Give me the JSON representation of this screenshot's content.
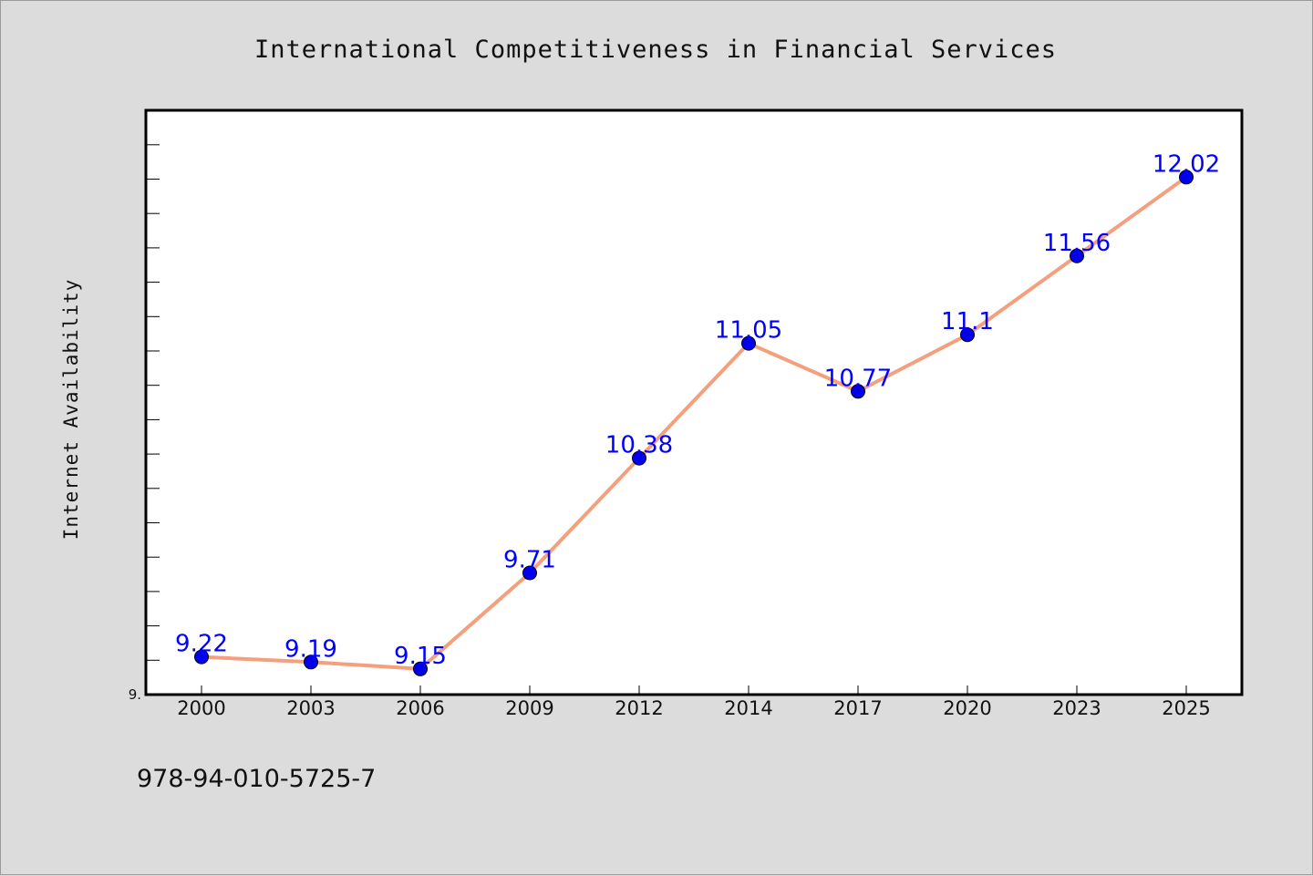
{
  "chart_data": {
    "type": "line",
    "title": "International Competitiveness in Financial Services",
    "xlabel": "",
    "ylabel": "Internet Availability",
    "categories": [
      "2000",
      "2003",
      "2006",
      "2009",
      "2012",
      "2014",
      "2017",
      "2020",
      "2023",
      "2025"
    ],
    "values": [
      9.22,
      9.19,
      9.15,
      9.71,
      10.38,
      11.05,
      10.77,
      11.1,
      11.56,
      12.02
    ],
    "data_labels": [
      "9.22",
      "9.19",
      "9.15",
      "9.71",
      "10.38",
      "11.05",
      "10.77",
      "11.1",
      "11.56",
      "12.02"
    ],
    "ylim": [
      9.0,
      12.41
    ],
    "y_min_label": "9.",
    "grid": false,
    "legend": "none",
    "colors": {
      "line": "#f4a07e",
      "marker": "#0000ee",
      "label": "#0000ff",
      "background": "#dcdcdc",
      "plot": "#ffffff"
    }
  },
  "footer": {
    "isbn": "978-94-010-5725-7"
  }
}
